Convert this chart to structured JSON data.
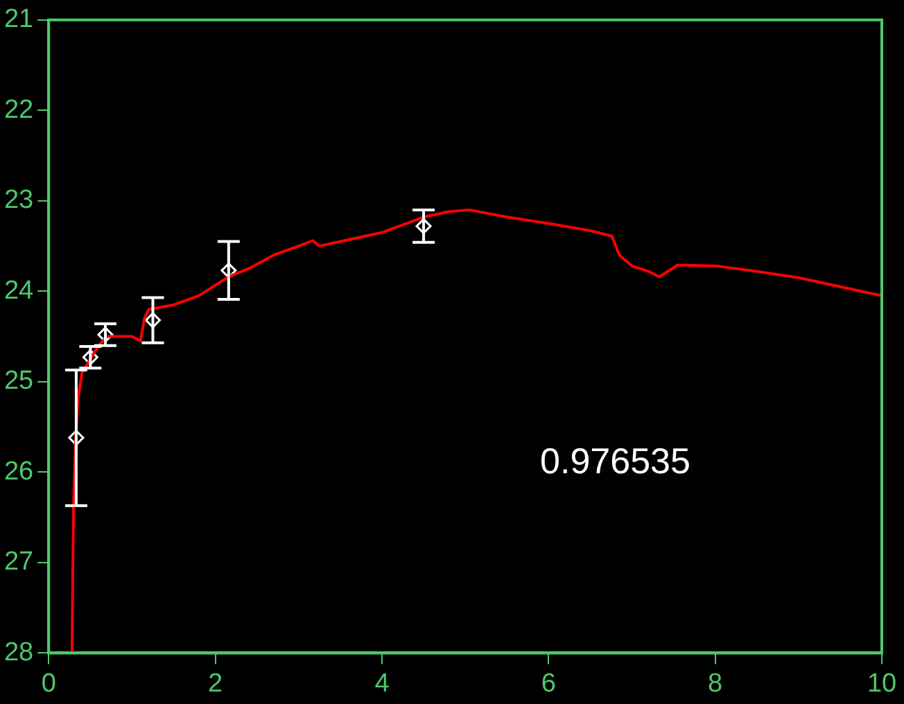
{
  "chart_data": {
    "type": "line",
    "xlim": [
      0,
      10
    ],
    "xticks": [
      0,
      2,
      4,
      6,
      8,
      10
    ],
    "ylim": [
      28,
      21
    ],
    "yticks": [
      21,
      22,
      23,
      24,
      25,
      26,
      27,
      28
    ],
    "grid": false,
    "legend": false,
    "annotations": [
      "0.976535"
    ],
    "series": [
      {
        "color": "#ff0000",
        "marker": "none",
        "x": [
          0.28,
          0.29,
          0.3,
          0.32,
          0.35,
          0.4,
          0.5,
          0.6,
          0.7,
          0.8,
          1.0,
          1.1,
          1.15,
          1.2,
          1.5,
          1.8,
          2.16,
          2.4,
          2.7,
          3.0,
          3.17,
          3.25,
          3.5,
          4.0,
          4.5,
          4.8,
          5.05,
          5.5,
          6.0,
          6.5,
          6.76,
          6.85,
          7.0,
          7.2,
          7.33,
          7.55,
          8.0,
          8.5,
          9.0,
          9.5,
          10.0
        ],
        "values": [
          28.0,
          27.0,
          26.3,
          25.7,
          25.2,
          24.9,
          24.75,
          24.6,
          24.5,
          24.5,
          24.5,
          24.55,
          24.3,
          24.2,
          24.15,
          24.05,
          23.84,
          23.75,
          23.6,
          23.5,
          23.44,
          23.5,
          23.45,
          23.35,
          23.18,
          23.12,
          23.1,
          23.18,
          23.25,
          23.33,
          23.39,
          23.6,
          23.72,
          23.78,
          23.84,
          23.71,
          23.72,
          23.78,
          23.85,
          23.95,
          24.05
        ]
      },
      {
        "type": "scatter",
        "color": "#ffffff",
        "marker": "diamond",
        "x": [
          0.33,
          0.5,
          0.68,
          1.25,
          2.16,
          4.5
        ],
        "values": [
          25.62,
          24.73,
          24.48,
          24.32,
          23.77,
          23.28
        ],
        "errors": [
          0.75,
          0.12,
          0.12,
          0.25,
          0.32,
          0.18
        ]
      }
    ]
  }
}
